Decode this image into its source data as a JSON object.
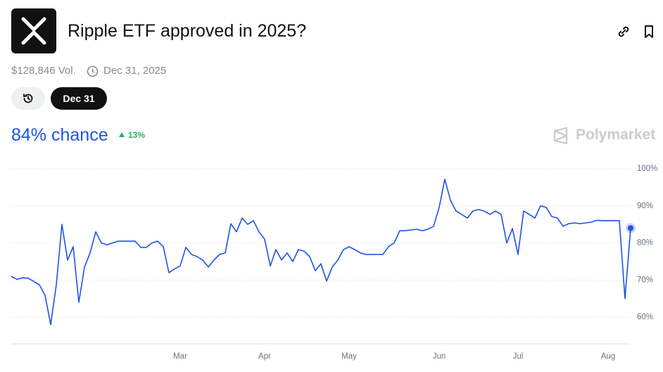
{
  "header": {
    "title": "Ripple ETF approved in 2025?",
    "volume": "$128,846 Vol.",
    "end_date": "Dec 31, 2025"
  },
  "controls": {
    "date_button": "Dec 31"
  },
  "chance": {
    "label": "84% chance",
    "change": "13%"
  },
  "brand": "Polymarket",
  "chart_data": {
    "type": "line",
    "color": "#1d53e6",
    "grid": true,
    "categories": [
      null,
      null,
      null,
      null,
      null,
      null,
      null,
      null,
      null,
      null,
      null,
      null,
      null,
      null,
      null,
      null,
      null,
      null,
      null,
      null,
      null,
      null,
      null,
      null,
      null,
      null,
      null,
      null,
      null,
      null,
      "Mar",
      null,
      null,
      null,
      null,
      null,
      null,
      null,
      null,
      null,
      null,
      null,
      null,
      null,
      null,
      "Apr",
      null,
      null,
      null,
      null,
      null,
      null,
      null,
      null,
      null,
      null,
      null,
      null,
      null,
      null,
      "May",
      null,
      null,
      null,
      null,
      null,
      null,
      null,
      null,
      null,
      null,
      null,
      null,
      null,
      null,
      null,
      "Jun",
      null,
      null,
      null,
      null,
      null,
      null,
      null,
      null,
      null,
      null,
      null,
      null,
      null,
      "Jul",
      null,
      null,
      null,
      null,
      null,
      null,
      null,
      null,
      null,
      null,
      null,
      null,
      null,
      null,
      null,
      "Aug",
      null,
      null,
      null,
      null
    ],
    "values": [
      71,
      70.2,
      70.6,
      70.5,
      69.6,
      68.7,
      65.9,
      58,
      68.7,
      85,
      75.4,
      79,
      64,
      73.5,
      77.3,
      83,
      80,
      79.5,
      80,
      80.5,
      80.5,
      80.5,
      80.5,
      78.8,
      78.8,
      80,
      80.5,
      79,
      72,
      73,
      73.8,
      78.8,
      76.9,
      76.3,
      75.4,
      73.5,
      75.4,
      76.9,
      77.3,
      85.2,
      83,
      86.7,
      85,
      86,
      83,
      81,
      73.8,
      78.2,
      75.4,
      77.3,
      75,
      78.2,
      77.8,
      76.3,
      72.5,
      74.4,
      69.7,
      73.5,
      75.4,
      78.2,
      79,
      78.2,
      77.3,
      76.9,
      76.9,
      76.9,
      76.9,
      79,
      80,
      83.3,
      83.3,
      83.5,
      83.7,
      83.3,
      83.7,
      84.5,
      89.6,
      97.2,
      91.5,
      88.6,
      87.7,
      86.7,
      88.6,
      89,
      88.6,
      87.7,
      88.6,
      87.7,
      80,
      83.9,
      76.9,
      88.6,
      87.7,
      86.7,
      90,
      89.6,
      87.1,
      86.7,
      84.5,
      85.2,
      85.4,
      85.2,
      85.4,
      85.6,
      86.1,
      86,
      86,
      86,
      86,
      65,
      84
    ],
    "ylim": [
      53,
      102
    ],
    "yticks": [
      {
        "value": 60,
        "label": "60%"
      },
      {
        "value": 70,
        "label": "70%"
      },
      {
        "value": 80,
        "label": "80%"
      },
      {
        "value": 90,
        "label": "90%"
      },
      {
        "value": 100,
        "label": "100%"
      }
    ]
  }
}
